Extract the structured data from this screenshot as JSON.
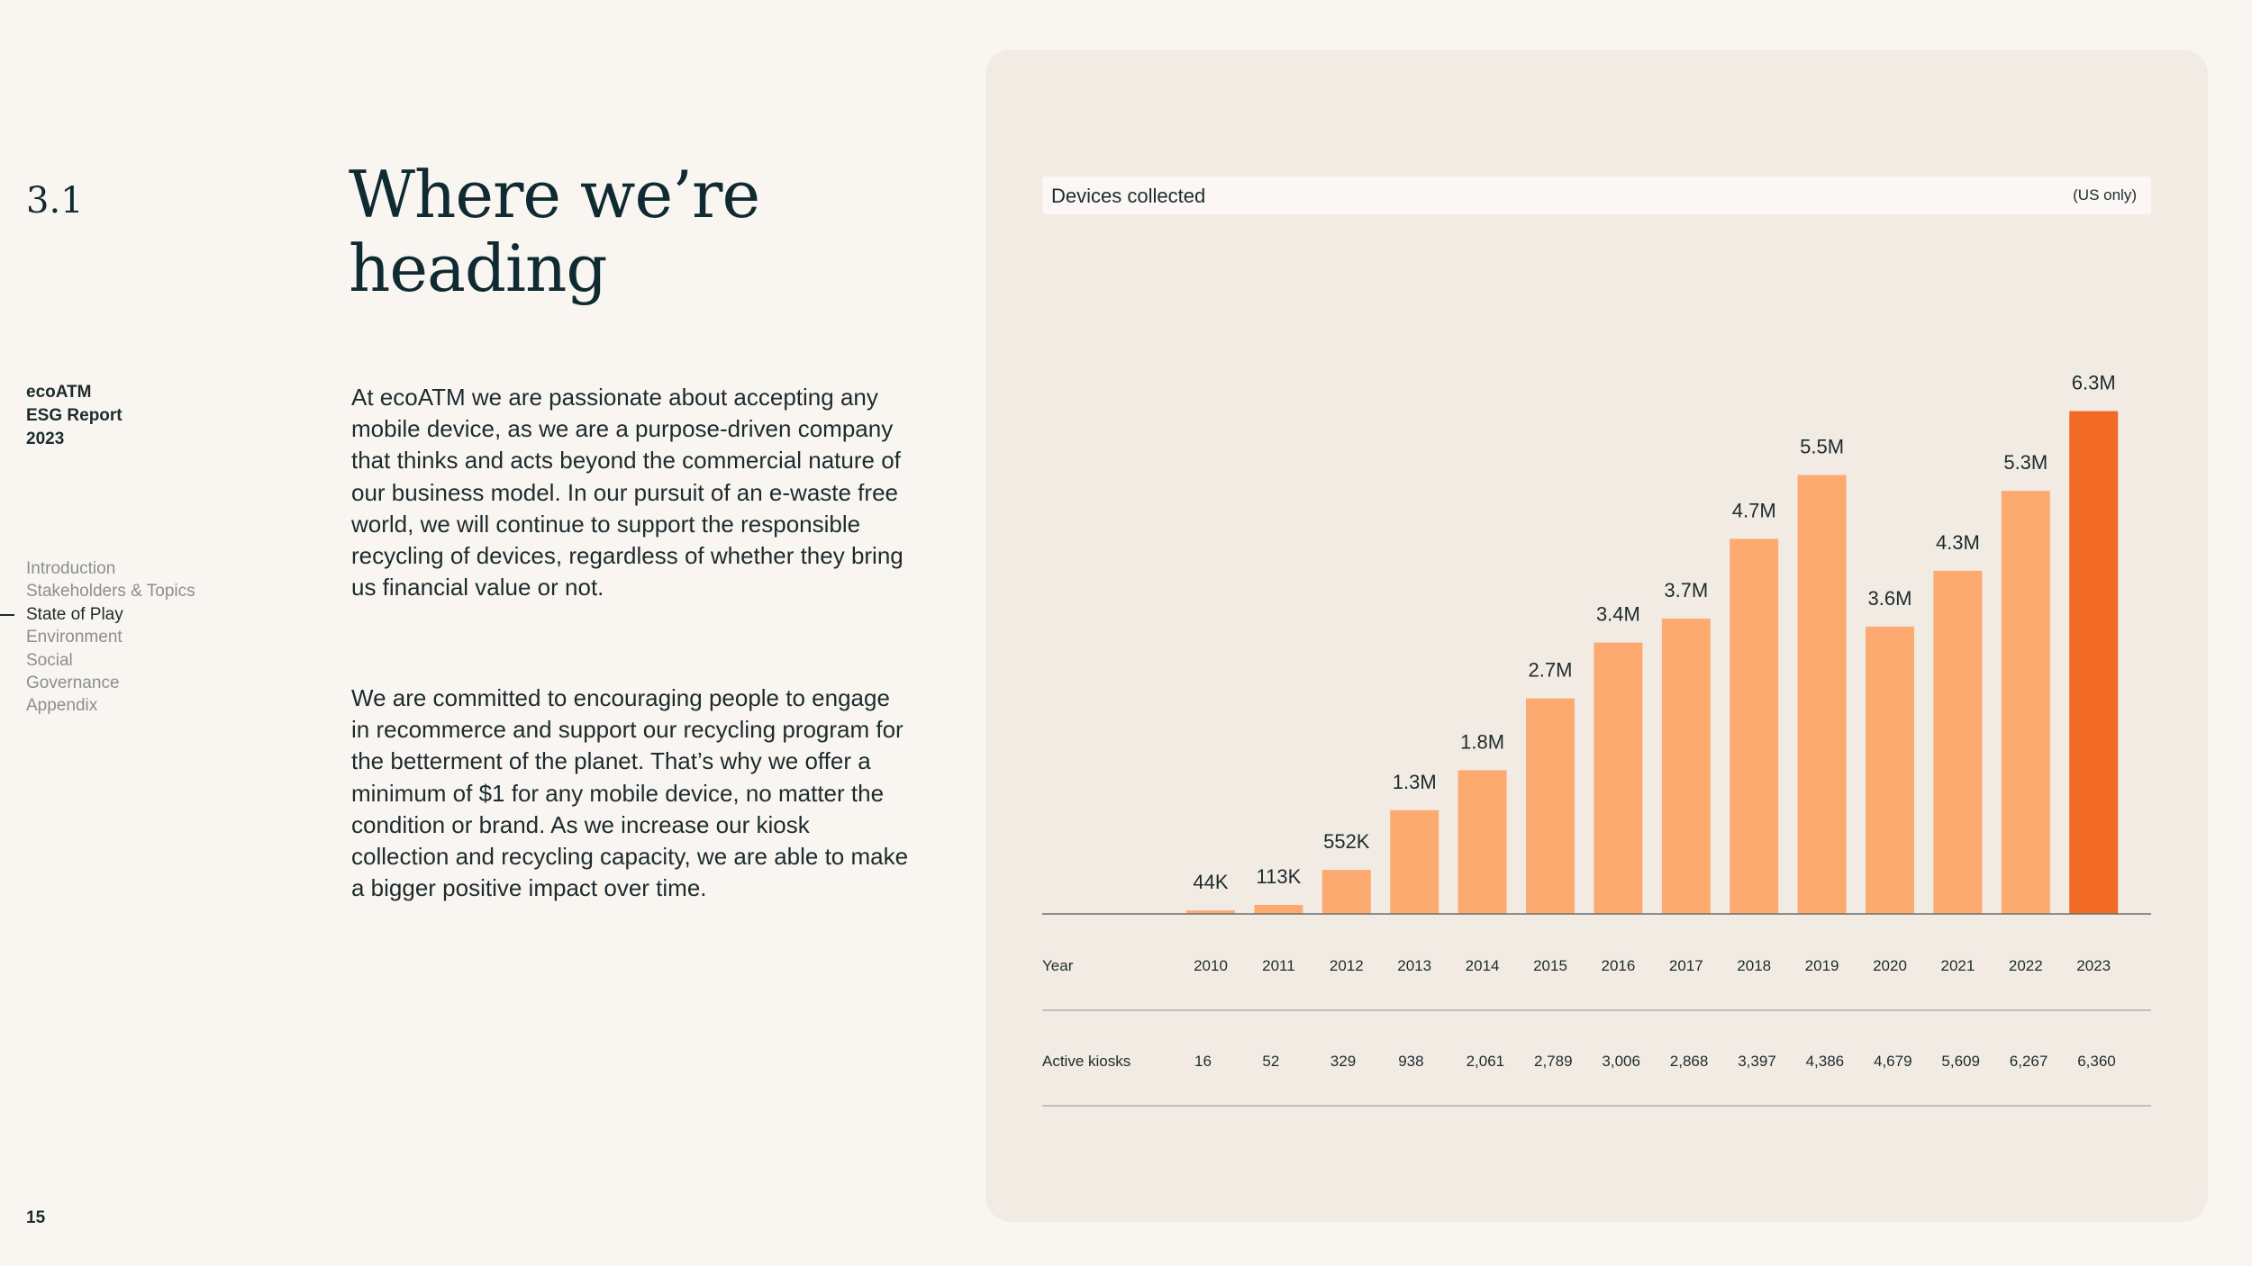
{
  "section": {
    "number": "3.1"
  },
  "report": {
    "line1": "ecoATM",
    "line2": "ESG Report",
    "line3": "2023"
  },
  "nav": {
    "items": [
      {
        "label": "Introduction"
      },
      {
        "label": "Stakeholders & Topics"
      },
      {
        "label": "State of Play"
      },
      {
        "label": "Environment"
      },
      {
        "label": "Social"
      },
      {
        "label": "Governance"
      },
      {
        "label": "Appendix"
      }
    ],
    "active_index": 2
  },
  "page": {
    "number": "15"
  },
  "main": {
    "title_line1": "Where we’re",
    "title_line2": "heading",
    "paragraph1": "At ecoATM we are passionate about accepting any mobile device, as we are a purpose-driven company that thinks and acts beyond the commercial nature of our business model. In our pursuit of an e-waste free world, we will continue to support the responsible recycling of devices, regardless of whether they bring us financial value or not.",
    "paragraph2": "We are committed to encouraging people to engage in recommerce and support our recycling program for the betterment of the planet. That’s why we offer a minimum of $1 for any mobile device, no matter the condition or brand. As we increase our kiosk collection and recycling capacity, we are able to make a bigger positive impact over time."
  },
  "colors": {
    "bar": "#fdaa71",
    "bar_highlight": "#f26b26",
    "panel": "#f2ebe4",
    "text": "#1d2b2d"
  },
  "chart_data": {
    "type": "bar",
    "title": "Devices collected",
    "note": "(US only)",
    "categories": [
      "2010",
      "2011",
      "2012",
      "2013",
      "2014",
      "2015",
      "2016",
      "2017",
      "2018",
      "2019",
      "2020",
      "2021",
      "2022",
      "2023"
    ],
    "values": [
      0.044,
      0.113,
      0.552,
      1.3,
      1.8,
      2.7,
      3.4,
      3.7,
      4.7,
      5.5,
      3.6,
      4.3,
      5.3,
      6.3
    ],
    "value_unit": "million devices",
    "data_labels": [
      "44K",
      "113K",
      "552K",
      "1.3M",
      "1.8M",
      "2.7M",
      "3.4M",
      "3.7M",
      "4.7M",
      "5.5M",
      "3.6M",
      "4.3M",
      "5.3M",
      "6.3M"
    ],
    "highlight_category": "2023",
    "ylim": [
      0,
      6.6
    ],
    "grid": false,
    "row_labels": {
      "year": "Year",
      "kiosks": "Active kiosks"
    },
    "active_kiosks": [
      "16",
      "52",
      "329",
      "938",
      "2,061",
      "2,789",
      "3,006",
      "2,868",
      "3,397",
      "4,386",
      "4,679",
      "5,609",
      "6,267",
      "6,360"
    ]
  }
}
